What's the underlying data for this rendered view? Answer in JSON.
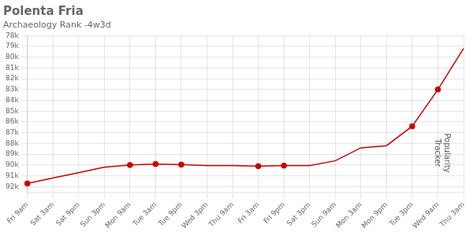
{
  "chart_data": {
    "type": "line",
    "title": "Polenta Fria",
    "subtitle": "Archaeology Rank -4w3d",
    "annotations": [
      "Popularity\nTracker"
    ],
    "categories": [
      "Fri 9am",
      "Sat 3am",
      "Sat 9pm",
      "Sun 3pm",
      "Mon 9am",
      "Tue 3am",
      "Tue 9pm",
      "Wed 3pm",
      "Thu 9am",
      "Fri 3am",
      "Fri 9pm",
      "Sat 3pm",
      "Sun 9am",
      "Mon 3am",
      "Mon 9pm",
      "Tue 3pm",
      "Wed 9am",
      "Thu 3am"
    ],
    "series": [
      {
        "color": "#cc0000",
        "values": [
          91700,
          91200,
          90700,
          90200,
          90000,
          89900,
          89950,
          90050,
          90050,
          90100,
          90050,
          90050,
          89600,
          88400,
          88200,
          86400,
          83000,
          79200
        ]
      },
      {
        "type": "scatter",
        "marker": "circle",
        "color": "#cc0000",
        "values": [
          91700,
          null,
          null,
          null,
          90000,
          89900,
          89950,
          null,
          null,
          90100,
          90050,
          null,
          null,
          null,
          null,
          86400,
          83000,
          null
        ]
      }
    ],
    "ylim": [
      92500,
      78000
    ],
    "yticks": [
      {
        "value": 78000,
        "label": "78k"
      },
      {
        "value": 79000,
        "label": "79k"
      },
      {
        "value": 80000,
        "label": "80k"
      },
      {
        "value": 81000,
        "label": "81k"
      },
      {
        "value": 82000,
        "label": "82k"
      },
      {
        "value": 83000,
        "label": "83k"
      },
      {
        "value": 84000,
        "label": "84k"
      },
      {
        "value": 85000,
        "label": "85k"
      },
      {
        "value": 86000,
        "label": "86k"
      },
      {
        "value": 87000,
        "label": "87k"
      },
      {
        "value": 88000,
        "label": "88k"
      },
      {
        "value": 89000,
        "label": "89k"
      },
      {
        "value": 90000,
        "label": "90k"
      },
      {
        "value": 91000,
        "label": "91k"
      },
      {
        "value": 92000,
        "label": "92k"
      }
    ],
    "grid": true
  }
}
